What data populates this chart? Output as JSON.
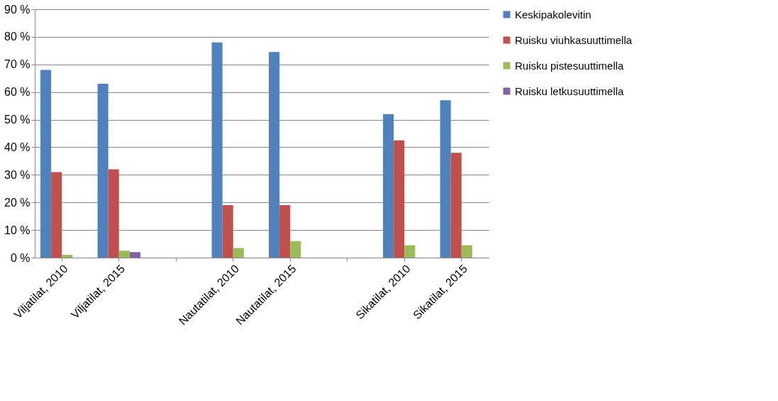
{
  "chart_data": {
    "type": "bar",
    "categories": [
      "Viljatilat, 2010",
      "Viljatilat, 2015",
      null,
      "Nautatilat, 2010",
      "Nautatilat, 2015",
      null,
      "Sikatilat, 2010",
      "Sikatilat, 2015"
    ],
    "series": [
      {
        "name": "Keskipakolevitin",
        "color": "#4f81bd",
        "values": [
          68,
          63,
          null,
          78,
          74.5,
          null,
          52,
          57
        ]
      },
      {
        "name": "Ruisku viuhkasuuttimella",
        "color": "#c0504d",
        "values": [
          31,
          32,
          null,
          19,
          19,
          null,
          42.5,
          38
        ]
      },
      {
        "name": "Ruisku pistesuuttimella",
        "color": "#9bbb59",
        "values": [
          1,
          2.5,
          null,
          3.5,
          6,
          null,
          4.5,
          4.5
        ]
      },
      {
        "name": "Ruisku letkusuuttimella",
        "color": "#8064a2",
        "values": [
          0,
          2,
          null,
          0,
          0,
          null,
          0,
          0
        ]
      }
    ],
    "ylim": [
      0,
      90
    ],
    "yticks": [
      {
        "value": 0,
        "label": "0 %"
      },
      {
        "value": 10,
        "label": "10 %"
      },
      {
        "value": 20,
        "label": "20 %"
      },
      {
        "value": 30,
        "label": "30 %"
      },
      {
        "value": 40,
        "label": "40 %"
      },
      {
        "value": 50,
        "label": "50 %"
      },
      {
        "value": 60,
        "label": "60 %"
      },
      {
        "value": 70,
        "label": "70 %"
      },
      {
        "value": 80,
        "label": "80 %"
      },
      {
        "value": 90,
        "label": "90 %"
      }
    ],
    "grid": "y",
    "legend": "right"
  }
}
